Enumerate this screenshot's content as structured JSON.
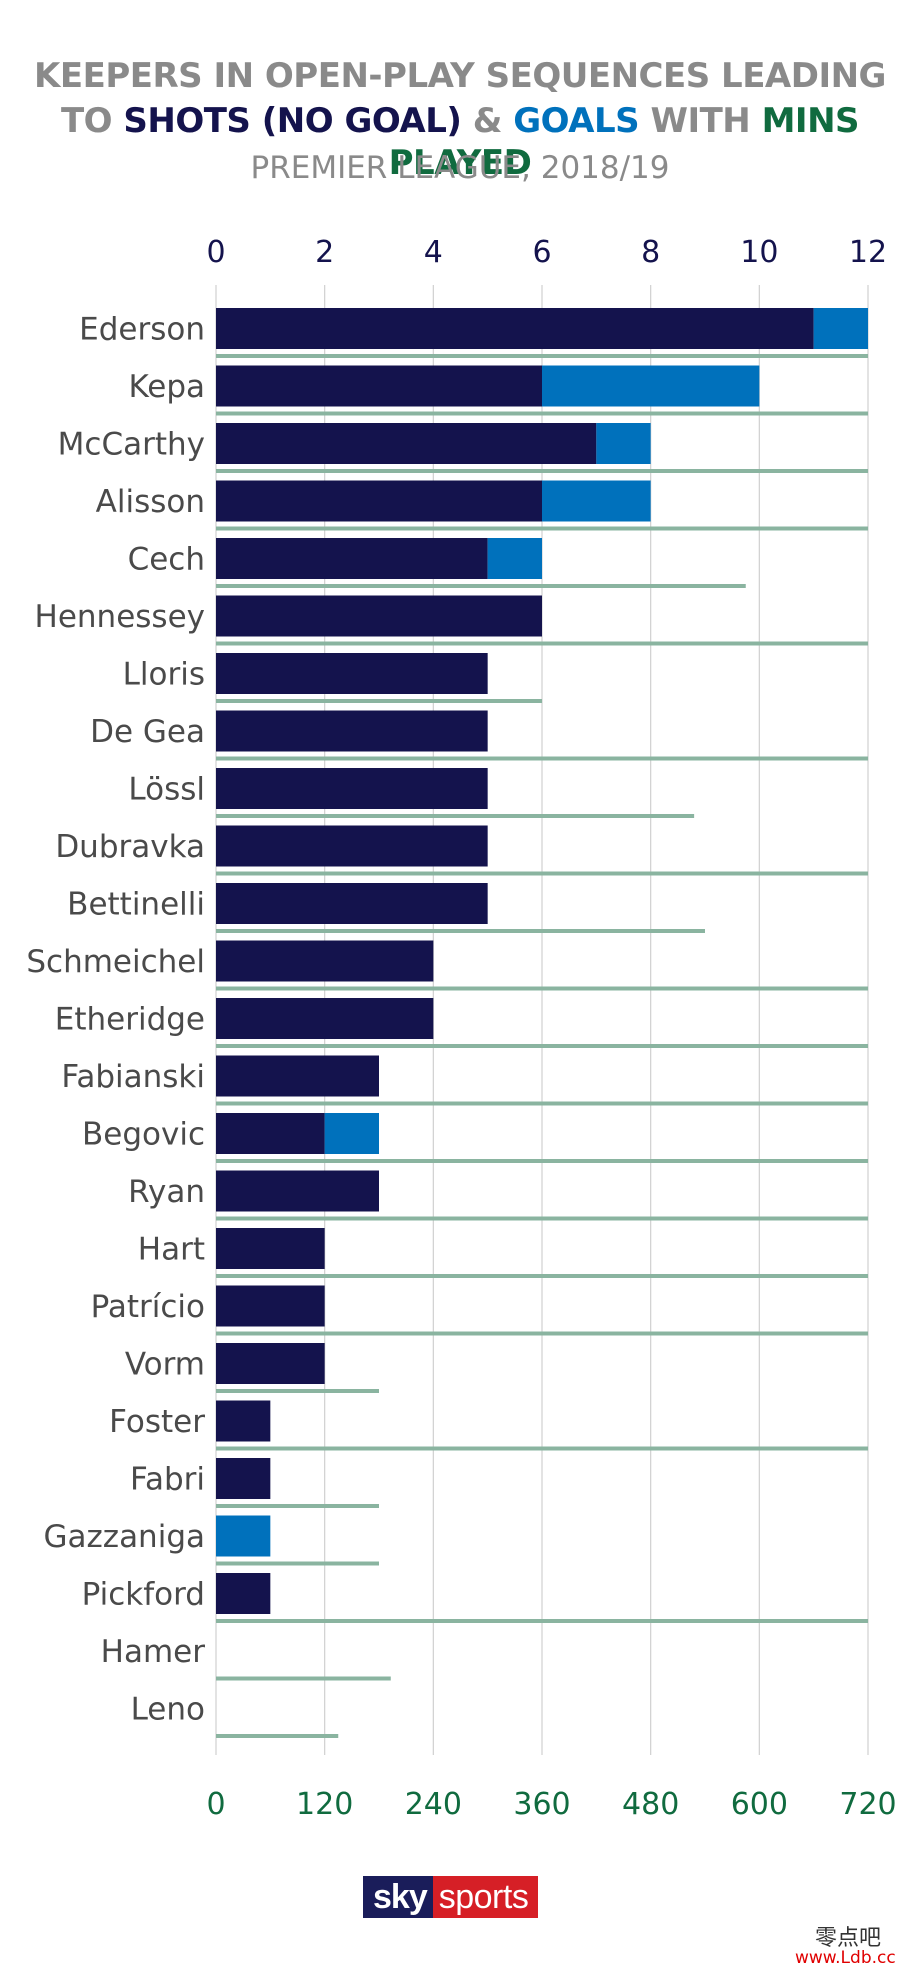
{
  "title": {
    "line1": "KEEPERS IN OPEN-PLAY SEQUENCES LEADING",
    "line2_prefix": "TO ",
    "shots_label": "SHOTS (NO GOAL)",
    "amp": " & ",
    "goals_label": "GOALS",
    "with": " WITH ",
    "mins_label": "MINS PLAYED"
  },
  "subtitle": "PREMIER LEAGUE, 2018/19",
  "colors": {
    "shots": "#14134d",
    "goals": "#0071bc",
    "mins": "#8ab4a0",
    "top_axis_text": "#14134d",
    "bottom_axis_text": "#106b3f",
    "grid": "#d0d0d0",
    "label_text": "#4a4a4a"
  },
  "chart_data": {
    "type": "bar",
    "orientation": "horizontal",
    "stacked": true,
    "categories": [
      "Ederson",
      "Kepa",
      "McCarthy",
      "Alisson",
      "Cech",
      "Hennessey",
      "Lloris",
      "De Gea",
      "Lössl",
      "Dubravka",
      "Bettinelli",
      "Schmeichel",
      "Etheridge",
      "Fabianski",
      "Begovic",
      "Ryan",
      "Hart",
      "Patrício",
      "Vorm",
      "Foster",
      "Fabri",
      "Gazzaniga",
      "Pickford",
      "Hamer",
      "Leno"
    ],
    "series": [
      {
        "name": "SHOTS (NO GOAL)",
        "values": [
          11,
          6,
          7,
          6,
          5,
          6,
          5,
          5,
          5,
          5,
          5,
          4,
          4,
          3,
          2,
          3,
          2,
          2,
          2,
          1,
          1,
          0,
          1,
          0,
          0
        ]
      },
      {
        "name": "GOALS",
        "values": [
          1,
          4,
          1,
          2,
          1,
          0,
          0,
          0,
          0,
          0,
          0,
          0,
          0,
          0,
          1,
          0,
          0,
          0,
          0,
          0,
          0,
          1,
          0,
          0,
          0
        ]
      },
      {
        "name": "MINS PLAYED",
        "values": [
          720,
          720,
          720,
          720,
          585,
          720,
          360,
          720,
          528,
          720,
          540,
          720,
          720,
          720,
          720,
          720,
          720,
          720,
          180,
          720,
          180,
          180,
          720,
          193,
          135
        ]
      }
    ],
    "top_axis": {
      "min": 0,
      "max": 12,
      "ticks": [
        0,
        2,
        4,
        6,
        8,
        10,
        12
      ]
    },
    "bottom_axis": {
      "min": 0,
      "max": 720,
      "ticks": [
        0,
        120,
        240,
        360,
        480,
        600,
        720
      ]
    },
    "grid": true
  },
  "logo": {
    "sky": "sky",
    "sports": "sports"
  },
  "watermark": {
    "cn": "零点吧",
    "url": "www.Ldb.cc"
  }
}
